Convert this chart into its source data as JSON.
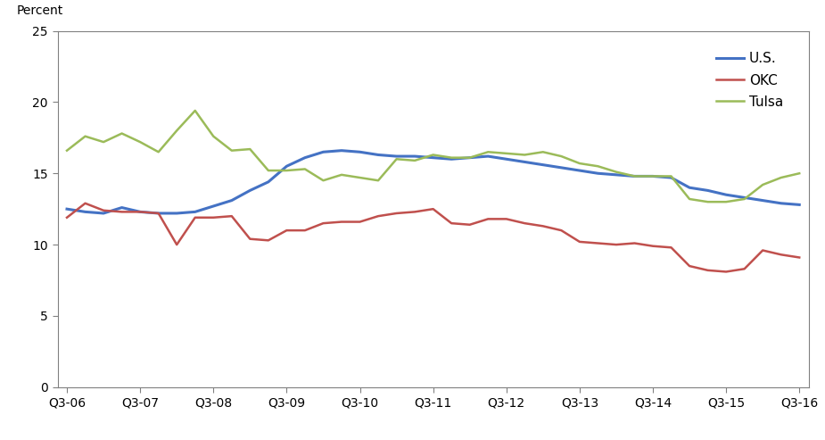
{
  "ylabel": "Percent",
  "ylim": [
    0,
    25
  ],
  "yticks": [
    0,
    5,
    10,
    15,
    20,
    25
  ],
  "xtick_labels": [
    "Q3-06",
    "Q3-07",
    "Q3-08",
    "Q3-09",
    "Q3-10",
    "Q3-11",
    "Q3-12",
    "Q3-13",
    "Q3-14",
    "Q3-15",
    "Q3-16"
  ],
  "xtick_positions": [
    0,
    4,
    8,
    12,
    16,
    20,
    24,
    28,
    32,
    36,
    40
  ],
  "us_color": "#4472C4",
  "okc_color": "#C0504D",
  "tulsa_color": "#9BBB59",
  "us_label": "U.S.",
  "okc_label": "OKC",
  "tulsa_label": "Tulsa",
  "us_values": [
    12.5,
    12.3,
    12.2,
    12.6,
    12.3,
    12.2,
    12.2,
    12.3,
    12.7,
    13.1,
    13.8,
    14.4,
    15.5,
    16.1,
    16.5,
    16.6,
    16.5,
    16.3,
    16.2,
    16.2,
    16.1,
    16.0,
    16.1,
    16.2,
    16.0,
    15.8,
    15.6,
    15.4,
    15.2,
    15.0,
    14.9,
    14.8,
    14.8,
    14.7,
    14.0,
    13.8,
    13.5,
    13.3,
    13.1,
    12.9,
    12.8
  ],
  "okc_values": [
    11.9,
    12.9,
    12.4,
    12.3,
    12.3,
    12.2,
    10.0,
    11.9,
    11.9,
    12.0,
    10.4,
    10.3,
    11.0,
    11.0,
    11.5,
    11.6,
    11.6,
    12.0,
    12.2,
    12.3,
    12.5,
    11.5,
    11.4,
    11.8,
    11.8,
    11.5,
    11.3,
    11.0,
    10.2,
    10.1,
    10.0,
    10.1,
    9.9,
    9.8,
    8.5,
    8.2,
    8.1,
    8.3,
    9.6,
    9.3,
    9.1
  ],
  "tulsa_values": [
    16.6,
    17.6,
    17.2,
    17.8,
    17.2,
    16.5,
    18.0,
    19.4,
    17.6,
    16.6,
    16.7,
    15.2,
    15.2,
    15.3,
    14.5,
    14.9,
    14.7,
    14.5,
    16.0,
    15.9,
    16.3,
    16.1,
    16.1,
    16.5,
    16.4,
    16.3,
    16.5,
    16.2,
    15.7,
    15.5,
    15.1,
    14.8,
    14.8,
    14.8,
    13.2,
    13.0,
    13.0,
    13.2,
    14.2,
    14.7,
    15.0
  ],
  "figsize": [
    9.25,
    4.93
  ],
  "dpi": 100
}
